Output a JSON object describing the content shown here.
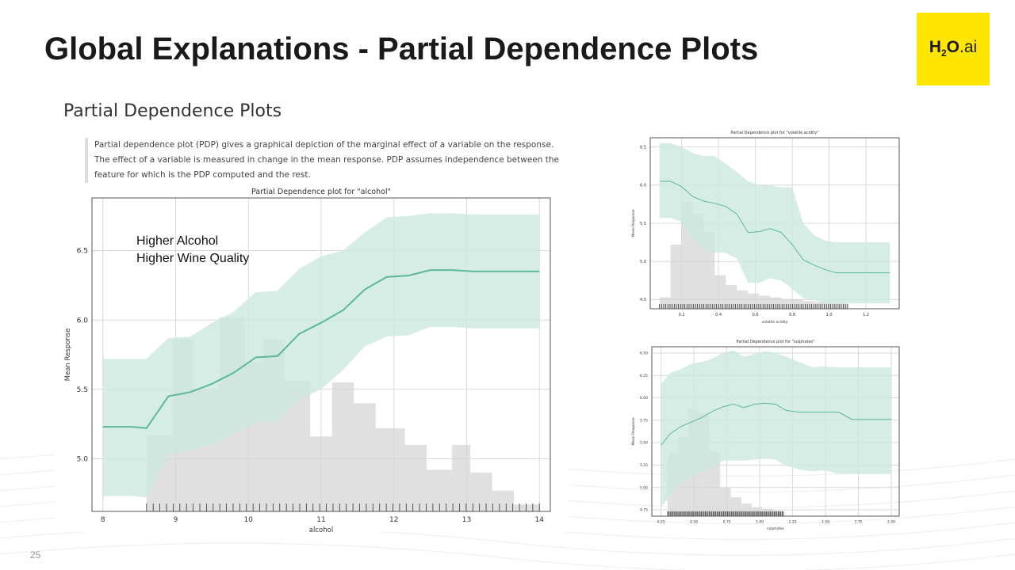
{
  "slide": {
    "title": "Global Explanations - Partial Dependence Plots",
    "page_number": "25",
    "logo": {
      "h": "H",
      "sub": "2",
      "o": "O",
      "ai": ".ai",
      "bg_color": "#ffe600"
    },
    "section_heading": "Partial Dependence Plots",
    "description": "Partial dependence plot (PDP) gives a graphical depiction of the marginal effect of a variable on the response. The effect of a variable is measured in change in the mean response. PDP assumes independence between the feature for which is the PDP computed and the rest.",
    "annotation": {
      "line1": "Higher Alcohol",
      "line2": "Higher Wine Quality"
    }
  },
  "colors": {
    "line": "#5cb89a",
    "band": "#cce9df",
    "hist": "#d6d6d6",
    "grid": "#d9d9d9"
  },
  "chart_data": [
    {
      "type": "line",
      "title": "Partial Dependence plot for \"alcohol\"",
      "xlabel": "alcohol",
      "ylabel": "Mean Response",
      "xlim": [
        7.85,
        14.15
      ],
      "ylim": [
        4.62,
        6.88
      ],
      "xticks": [
        8,
        9,
        10,
        11,
        12,
        13,
        14
      ],
      "yticks": [
        5.0,
        5.5,
        6.0,
        6.5
      ],
      "ytick_labels": [
        "5.0",
        "5.5",
        "6.0",
        "6.5"
      ],
      "grid": true,
      "x": [
        8.0,
        8.2,
        8.4,
        8.6,
        8.9,
        9.2,
        9.5,
        9.8,
        10.1,
        10.4,
        10.7,
        11.0,
        11.3,
        11.6,
        11.9,
        12.2,
        12.5,
        12.8,
        13.1,
        13.4,
        13.7,
        14.0
      ],
      "mean": [
        5.23,
        5.23,
        5.23,
        5.22,
        5.45,
        5.48,
        5.54,
        5.62,
        5.73,
        5.74,
        5.9,
        5.98,
        6.07,
        6.22,
        6.31,
        6.32,
        6.36,
        6.36,
        6.35,
        6.35,
        6.35,
        6.35
      ],
      "upper": [
        5.72,
        5.72,
        5.72,
        5.72,
        5.87,
        5.88,
        5.98,
        6.06,
        6.2,
        6.21,
        6.37,
        6.46,
        6.5,
        6.63,
        6.74,
        6.75,
        6.77,
        6.77,
        6.76,
        6.76,
        6.76,
        6.76
      ],
      "lower": [
        4.73,
        4.73,
        4.73,
        4.72,
        5.03,
        5.06,
        5.1,
        5.18,
        5.26,
        5.27,
        5.43,
        5.5,
        5.64,
        5.81,
        5.88,
        5.89,
        5.95,
        5.95,
        5.94,
        5.94,
        5.94,
        5.94
      ],
      "histogram": {
        "edges": [
          8.6,
          8.95,
          9.25,
          9.6,
          9.95,
          10.2,
          10.5,
          10.85,
          11.15,
          11.45,
          11.75,
          12.15,
          12.45,
          12.8,
          13.05,
          13.35,
          13.65,
          14.0
        ],
        "heights": [
          5.17,
          5.86,
          5.5,
          6.02,
          5.7,
          5.86,
          5.56,
          5.16,
          5.55,
          5.4,
          5.22,
          5.1,
          4.92,
          5.1,
          4.9,
          4.77,
          4.67
        ]
      }
    },
    {
      "type": "line",
      "title": "Partial Dependence plot for \"volatile acidity\"",
      "xlabel": "volatile acidity",
      "ylabel": "Mean Response",
      "xlim": [
        0.03,
        1.38
      ],
      "ylim": [
        4.38,
        6.62
      ],
      "xticks": [
        0.2,
        0.4,
        0.6,
        0.8,
        1.0,
        1.2
      ],
      "xtick_labels": [
        "0.2",
        "0.4",
        "0.6",
        "0.8",
        "1.0",
        "1.2"
      ],
      "yticks": [
        4.5,
        5.0,
        5.5,
        6.0,
        6.5
      ],
      "ytick_labels": [
        "4.5",
        "5.0",
        "5.5",
        "6.0",
        "6.5"
      ],
      "grid": true,
      "x": [
        0.08,
        0.14,
        0.2,
        0.26,
        0.32,
        0.38,
        0.44,
        0.5,
        0.56,
        0.62,
        0.68,
        0.74,
        0.8,
        0.86,
        0.92,
        0.98,
        1.04,
        1.1,
        1.2,
        1.33
      ],
      "mean": [
        6.05,
        6.05,
        5.98,
        5.85,
        5.79,
        5.76,
        5.72,
        5.62,
        5.38,
        5.39,
        5.43,
        5.38,
        5.22,
        5.02,
        4.95,
        4.89,
        4.85,
        4.85,
        4.85,
        4.85
      ],
      "upper": [
        6.55,
        6.55,
        6.5,
        6.42,
        6.38,
        6.38,
        6.28,
        6.17,
        6.05,
        6.0,
        6.0,
        5.97,
        5.97,
        5.5,
        5.34,
        5.27,
        5.25,
        5.25,
        5.25,
        5.25
      ],
      "lower": [
        5.57,
        5.57,
        5.52,
        5.3,
        5.16,
        5.12,
        5.11,
        5.04,
        4.72,
        4.72,
        4.78,
        4.75,
        4.64,
        4.52,
        4.49,
        4.46,
        4.45,
        4.45,
        4.45,
        4.45
      ],
      "histogram": {
        "edges": [
          0.08,
          0.14,
          0.2,
          0.26,
          0.32,
          0.38,
          0.44,
          0.5,
          0.56,
          0.62,
          0.68,
          0.74,
          0.8,
          0.86,
          0.92,
          0.98,
          1.04,
          1.1
        ],
        "heights": [
          4.53,
          5.22,
          5.78,
          5.62,
          5.38,
          4.82,
          4.69,
          4.62,
          4.58,
          4.55,
          4.53,
          4.51,
          4.5,
          4.48,
          4.47,
          4.46,
          4.45
        ]
      }
    },
    {
      "type": "line",
      "title": "Partial Dependence plot for \"sulphates\"",
      "xlabel": "sulphates",
      "ylabel": "Mean Response",
      "xlim": [
        0.18,
        2.06
      ],
      "ylim": [
        4.68,
        6.57
      ],
      "xticks": [
        0.25,
        0.5,
        0.75,
        1.0,
        1.25,
        1.5,
        1.75,
        2.0
      ],
      "xtick_labels": [
        "0.25",
        "0.50",
        "0.75",
        "1.00",
        "1.25",
        "1.50",
        "1.75",
        "2.00"
      ],
      "yticks": [
        4.75,
        5.0,
        5.25,
        5.5,
        5.75,
        6.0,
        6.25,
        6.5
      ],
      "ytick_labels": [
        "4.75",
        "5.00",
        "5.25",
        "5.50",
        "5.75",
        "6.00",
        "6.25",
        "6.50"
      ],
      "grid": true,
      "x": [
        0.25,
        0.32,
        0.4,
        0.48,
        0.56,
        0.64,
        0.72,
        0.8,
        0.88,
        0.96,
        1.04,
        1.12,
        1.2,
        1.3,
        1.4,
        1.5,
        1.6,
        1.7,
        1.8,
        2.0
      ],
      "mean": [
        5.47,
        5.6,
        5.68,
        5.73,
        5.78,
        5.85,
        5.9,
        5.93,
        5.89,
        5.93,
        5.94,
        5.93,
        5.86,
        5.84,
        5.84,
        5.84,
        5.84,
        5.76,
        5.76,
        5.76
      ],
      "upper": [
        6.15,
        6.28,
        6.32,
        6.38,
        6.4,
        6.44,
        6.5,
        6.53,
        6.46,
        6.49,
        6.52,
        6.5,
        6.46,
        6.4,
        6.34,
        6.35,
        6.34,
        6.34,
        6.34,
        6.34
      ],
      "lower": [
        4.78,
        4.9,
        5.05,
        5.12,
        5.17,
        5.23,
        5.3,
        5.3,
        5.3,
        5.31,
        5.32,
        5.31,
        5.24,
        5.2,
        5.18,
        5.19,
        5.15,
        5.15,
        5.15,
        5.15
      ],
      "histogram": {
        "edges": [
          0.3,
          0.38,
          0.46,
          0.54,
          0.62,
          0.7,
          0.78,
          0.86,
          0.94,
          1.02,
          1.1,
          1.18
        ],
        "heights": [
          5.38,
          5.56,
          5.87,
          5.83,
          5.4,
          5.0,
          4.89,
          4.82,
          4.78,
          4.76,
          4.74
        ]
      }
    }
  ]
}
